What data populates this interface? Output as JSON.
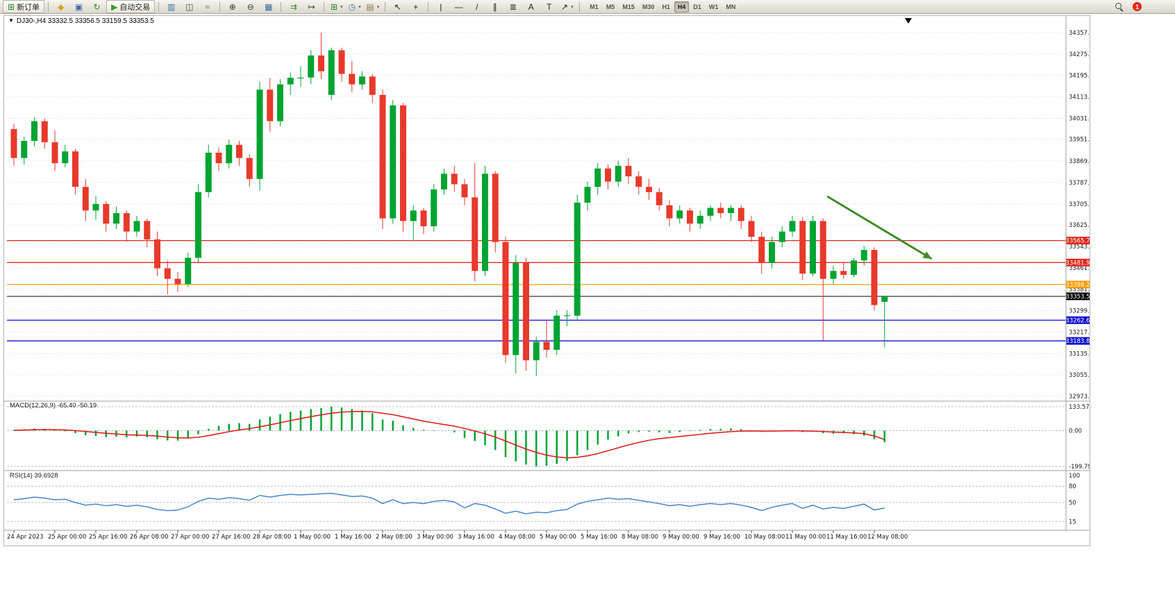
{
  "toolbar": {
    "items": [
      {
        "name": "new-order",
        "glyph": "⊞",
        "color": "#1e8a1e",
        "label": "新订单"
      },
      {
        "sep": true
      },
      {
        "name": "metaquotes",
        "glyph": "◆",
        "color": "#dca425"
      },
      {
        "name": "market-watch",
        "glyph": "▣",
        "color": "#3a6ea5"
      },
      {
        "name": "refresh",
        "glyph": "↻",
        "color": "#2e8b2e"
      },
      {
        "name": "auto-trading",
        "glyph": "▶",
        "color": "#2aa12a",
        "label": "自动交易"
      },
      {
        "sep": true
      },
      {
        "name": "bar-chart",
        "glyph": "▥",
        "color": "#3a6ea5"
      },
      {
        "name": "candlestick-chart",
        "glyph": "◫",
        "color": "#444444"
      },
      {
        "name": "line-chart",
        "glyph": "≈",
        "color": "#2e8b2e"
      },
      {
        "sep": true
      },
      {
        "name": "zoom-in",
        "glyph": "⊕",
        "color": "#333333"
      },
      {
        "name": "zoom-out",
        "glyph": "⊖",
        "color": "#333333"
      },
      {
        "name": "tile-windows",
        "glyph": "▦",
        "color": "#3a6ea5"
      },
      {
        "sep": true
      },
      {
        "name": "auto-scroll",
        "glyph": "⇉",
        "color": "#2e8b2e"
      },
      {
        "name": "chart-shift",
        "glyph": "↦",
        "color": "#444444"
      },
      {
        "sep": true
      },
      {
        "name": "indicators",
        "glyph": "⊞",
        "color": "#2e8b2e",
        "dropdown": true
      },
      {
        "name": "periods",
        "glyph": "◷",
        "color": "#3a6ea5",
        "dropdown": true
      },
      {
        "name": "templates",
        "glyph": "▤",
        "color": "#8a7a4a",
        "dropdown": true
      },
      {
        "sep": true
      },
      {
        "name": "cursor",
        "glyph": "↖",
        "color": "#222222"
      },
      {
        "name": "crosshair",
        "glyph": "+",
        "color": "#222222"
      },
      {
        "sep": true
      },
      {
        "name": "vertical-line",
        "glyph": "|",
        "color": "#222222"
      },
      {
        "name": "horizontal-line",
        "glyph": "—",
        "color": "#222222"
      },
      {
        "name": "trendline",
        "glyph": "/",
        "color": "#222222"
      },
      {
        "name": "equidistant-channel",
        "glyph": "∥",
        "color": "#222222"
      },
      {
        "name": "fibonacci",
        "glyph": "≣",
        "color": "#222222"
      },
      {
        "name": "text",
        "glyph": "A",
        "color": "#222222"
      },
      {
        "name": "text-label",
        "glyph": "T",
        "color": "#222222"
      },
      {
        "name": "arrows",
        "glyph": "↗",
        "color": "#222222",
        "dropdown": true
      },
      {
        "sep": true
      }
    ],
    "timeframes": [
      "M1",
      "M5",
      "M15",
      "M30",
      "H1",
      "H4",
      "D1",
      "W1",
      "MN"
    ],
    "active_timeframe": "H4",
    "notification_count": "1"
  },
  "chart": {
    "symbol_info": "DJ30-,H4 33332.5 33356.5 33159.5 33353.5",
    "macd_label": "MACD(12,26,9) -65.40 -50.19",
    "rsi_label": "RSI(14) 39.6928"
  },
  "chart_data": {
    "type": "candlestick",
    "symbol": "DJ30-",
    "timeframe": "H4",
    "current_ohlc": {
      "open": 33332.5,
      "high": 33356.5,
      "low": 33159.5,
      "close": 33353.5
    },
    "price_range": {
      "top": 34357.0,
      "bottom": 32973.0
    },
    "y_axis_labels": [
      "34357.0",
      "34275.0",
      "34195.0",
      "34113.0",
      "34031.0",
      "33951.0",
      "33869.0",
      "33787.0",
      "33705.0",
      "33625.0",
      "33543.0",
      "33461.0",
      "33381.0",
      "33299.0",
      "33217.0",
      "33135.0",
      "33055.0",
      "32973.0"
    ],
    "x_axis": {
      "step": 4,
      "labels": [
        "24 Apr 2023",
        "25 Apr 00:00",
        "25 Apr 16:00",
        "26 Apr 08:00",
        "27 Apr 00:00",
        "27 Apr 16:00",
        "28 Apr 08:00",
        "1 May 00:00",
        "1 May 16:00",
        "2 May 08:00",
        "3 May 00:00",
        "3 May 16:00",
        "4 May 08:00",
        "5 May 00:00",
        "5 May 16:00",
        "8 May 08:00",
        "9 May 00:00",
        "9 May 16:00",
        "10 May 08:00",
        "11 May 00:00",
        "11 May 16:00",
        "12 May 08:00"
      ]
    },
    "candles": [
      [
        33990,
        34010,
        33850,
        33880
      ],
      [
        33880,
        33960,
        33855,
        33945
      ],
      [
        33945,
        34035,
        33925,
        34020
      ],
      [
        34020,
        34030,
        33915,
        33940
      ],
      [
        33940,
        33985,
        33830,
        33860
      ],
      [
        33860,
        33930,
        33845,
        33905
      ],
      [
        33905,
        33915,
        33740,
        33770
      ],
      [
        33770,
        33800,
        33640,
        33680
      ],
      [
        33680,
        33735,
        33645,
        33705
      ],
      [
        33705,
        33715,
        33600,
        33630
      ],
      [
        33630,
        33695,
        33610,
        33670
      ],
      [
        33670,
        33680,
        33560,
        33600
      ],
      [
        33600,
        33660,
        33580,
        33640
      ],
      [
        33640,
        33650,
        33540,
        33570
      ],
      [
        33570,
        33600,
        33430,
        33460
      ],
      [
        33460,
        33490,
        33360,
        33420
      ],
      [
        33420,
        33445,
        33370,
        33400
      ],
      [
        33400,
        33520,
        33390,
        33500
      ],
      [
        33500,
        33780,
        33480,
        33750
      ],
      [
        33750,
        33930,
        33730,
        33900
      ],
      [
        33900,
        33920,
        33830,
        33860
      ],
      [
        33860,
        33950,
        33840,
        33930
      ],
      [
        33930,
        33945,
        33850,
        33880
      ],
      [
        33880,
        33895,
        33770,
        33800
      ],
      [
        33800,
        34170,
        33755,
        34140
      ],
      [
        34140,
        34185,
        33980,
        34020
      ],
      [
        34020,
        34180,
        34000,
        34160
      ],
      [
        34160,
        34205,
        34120,
        34185
      ],
      [
        34185,
        34230,
        34150,
        34186
      ],
      [
        34186,
        34290,
        34160,
        34270
      ],
      [
        34270,
        34357,
        34180,
        34210
      ],
      [
        34120,
        34300,
        34100,
        34290
      ],
      [
        34290,
        34300,
        34170,
        34200
      ],
      [
        34200,
        34250,
        34130,
        34160
      ],
      [
        34160,
        34210,
        34140,
        34190
      ],
      [
        34190,
        34200,
        34090,
        34120
      ],
      [
        34120,
        34140,
        33610,
        33650
      ],
      [
        33650,
        34100,
        33630,
        34080
      ],
      [
        34080,
        34090,
        33600,
        33640
      ],
      [
        33640,
        33700,
        33565,
        33680
      ],
      [
        33680,
        33690,
        33590,
        33620
      ],
      [
        33620,
        33780,
        33600,
        33760
      ],
      [
        33760,
        33840,
        33740,
        33820
      ],
      [
        33820,
        33850,
        33750,
        33780
      ],
      [
        33780,
        33800,
        33700,
        33730
      ],
      [
        33730,
        33860,
        33410,
        33450
      ],
      [
        33450,
        33850,
        33430,
        33820
      ],
      [
        33820,
        33830,
        33520,
        33560
      ],
      [
        33560,
        33580,
        33100,
        33130
      ],
      [
        33130,
        33510,
        33060,
        33480
      ],
      [
        33480,
        33500,
        33070,
        33110
      ],
      [
        33110,
        33200,
        33050,
        33180
      ],
      [
        33180,
        33260,
        33120,
        33150
      ],
      [
        33150,
        33300,
        33130,
        33280
      ],
      [
        33280,
        33300,
        33240,
        33281
      ],
      [
        33280,
        33740,
        33260,
        33710
      ],
      [
        33710,
        33790,
        33680,
        33770
      ],
      [
        33770,
        33860,
        33740,
        33840
      ],
      [
        33840,
        33855,
        33760,
        33790
      ],
      [
        33790,
        33870,
        33770,
        33850
      ],
      [
        33850,
        33880,
        33780,
        33810
      ],
      [
        33810,
        33830,
        33740,
        33770
      ],
      [
        33770,
        33800,
        33720,
        33750
      ],
      [
        33750,
        33765,
        33680,
        33700
      ],
      [
        33700,
        33720,
        33620,
        33650
      ],
      [
        33650,
        33700,
        33630,
        33680
      ],
      [
        33680,
        33690,
        33600,
        33630
      ],
      [
        33630,
        33680,
        33610,
        33660
      ],
      [
        33660,
        33700,
        33640,
        33690
      ],
      [
        33690,
        33710,
        33650,
        33670
      ],
      [
        33670,
        33700,
        33640,
        33690
      ],
      [
        33690,
        33700,
        33610,
        33640
      ],
      [
        33640,
        33660,
        33560,
        33580
      ],
      [
        33580,
        33600,
        33440,
        33480
      ],
      [
        33480,
        33580,
        33460,
        33560
      ],
      [
        33560,
        33620,
        33540,
        33600
      ],
      [
        33600,
        33660,
        33580,
        33640
      ],
      [
        33640,
        33655,
        33415,
        33440
      ],
      [
        33440,
        33660,
        33430,
        33640
      ],
      [
        33640,
        33650,
        33185,
        33420
      ],
      [
        33420,
        33470,
        33400,
        33450
      ],
      [
        33450,
        33480,
        33420,
        33435
      ],
      [
        33435,
        33500,
        33425,
        33490
      ],
      [
        33490,
        33545,
        33470,
        33530
      ],
      [
        33530,
        33540,
        33300,
        33320
      ],
      [
        33332.5,
        33356.5,
        33159.5,
        33353.5
      ]
    ],
    "levels": [
      {
        "name": "resistance-level-1",
        "price": 33565.7,
        "label": "33565.7",
        "color": "#e02519",
        "width": 1.3
      },
      {
        "name": "resistance-level-2",
        "price": 33481.9,
        "label": "33481.9",
        "color": "#e02519",
        "width": 1.3
      },
      {
        "name": "pivot-level",
        "price": 33398.2,
        "label": "33398.2",
        "color": "#ff9c00",
        "width": 1.3
      },
      {
        "name": "current-price",
        "price": 33353.5,
        "label": "33353.5",
        "color": "#000000",
        "width": 1
      },
      {
        "name": "support-level-1",
        "price": 33262.6,
        "label": "33262.6",
        "color": "#0f0fd0",
        "width": 1.3
      },
      {
        "name": "support-level-2",
        "price": 33183.8,
        "label": "33183.8",
        "color": "#0f0fd0",
        "width": 1.3
      }
    ],
    "trend_arrow": {
      "from_bar": 79.4,
      "from_price": 33734,
      "to_bar": 89.6,
      "to_price": 33496,
      "color": "#3e8b28"
    },
    "macd": {
      "label": "MACD(12,26,9) -65.40 -50.19",
      "max": 133.57,
      "min": -199.79,
      "axis": [
        {
          "label": "133.57",
          "value": 133.57
        },
        {
          "label": "0.00",
          "value": 0
        },
        {
          "label": "-199.79",
          "value": -199.79
        }
      ],
      "values": [
        4,
        8,
        12,
        10,
        3,
        -4,
        -14,
        -26,
        -30,
        -36,
        -34,
        -38,
        -33,
        -37,
        -48,
        -55,
        -56,
        -45,
        -20,
        10,
        26,
        38,
        42,
        38,
        62,
        78,
        92,
        105,
        112,
        120,
        126,
        133.57,
        129,
        120,
        112,
        98,
        62,
        55,
        30,
        15,
        5,
        2,
        0,
        -10,
        -42,
        -58,
        -82,
        -108,
        -148,
        -172,
        -190,
        -199.79,
        -196,
        -186,
        -170,
        -138,
        -108,
        -78,
        -50,
        -32,
        -16,
        -8,
        -6,
        -9,
        -14,
        -8,
        -2,
        4,
        9,
        10,
        12,
        8,
        2,
        -7,
        -5,
        1,
        3,
        -8,
        -6,
        -14,
        -18,
        -15,
        -20,
        -28,
        -48,
        -65.4
      ],
      "signal": [
        2,
        3,
        5,
        6,
        5,
        4,
        0,
        -5,
        -10,
        -15,
        -19,
        -23,
        -25,
        -27,
        -31,
        -36,
        -40,
        -41,
        -37,
        -28,
        -17,
        -6,
        4,
        11,
        21,
        32,
        44,
        56,
        67,
        78,
        88,
        97,
        103,
        106,
        107,
        105,
        97,
        89,
        77,
        65,
        53,
        43,
        34,
        25,
        12,
        -2,
        -18,
        -36,
        -58,
        -81,
        -103,
        -122,
        -137,
        -147,
        -152,
        -149,
        -141,
        -128,
        -112,
        -96,
        -80,
        -66,
        -54,
        -45,
        -39,
        -33,
        -27,
        -21,
        -15,
        -10,
        -6,
        -3,
        -2,
        -3,
        -3,
        -2,
        -1,
        -2,
        -3,
        -5,
        -8,
        -10,
        -13,
        -17,
        -30,
        -50.19
      ]
    },
    "rsi": {
      "label": "RSI(14) 39.6928",
      "current": 39.6928,
      "axis": [
        {
          "label": "100",
          "value": 100
        },
        {
          "label": "80",
          "value": 80
        },
        {
          "label": "50",
          "value": 50
        },
        {
          "label": "15",
          "value": 15
        }
      ],
      "levels": [
        80,
        50,
        15
      ],
      "values": [
        55,
        57,
        60,
        58,
        55,
        56,
        50,
        45,
        47,
        44,
        46,
        43,
        45,
        42,
        37,
        35,
        36,
        42,
        52,
        58,
        56,
        59,
        57,
        54,
        63,
        60,
        63,
        65,
        64,
        65,
        66,
        67,
        64,
        61,
        62,
        58,
        48,
        55,
        48,
        50,
        48,
        52,
        54,
        51,
        40,
        48,
        45,
        38,
        30,
        34,
        29,
        32,
        31,
        35,
        37,
        47,
        52,
        55,
        58,
        56,
        57,
        54,
        51,
        48,
        44,
        46,
        43,
        46,
        48,
        46,
        48,
        45,
        41,
        35,
        41,
        45,
        48,
        39,
        45,
        38,
        41,
        39,
        43,
        47,
        36,
        39.6928
      ]
    },
    "colors": {
      "bull": "#00a432",
      "bear": "#e8392b",
      "macd_hist": "#00a432",
      "macd_signal": "#e02020",
      "rsi_line": "#4a86c8",
      "grid": "#d8d8d8",
      "separator": "#9d9d9d"
    }
  }
}
